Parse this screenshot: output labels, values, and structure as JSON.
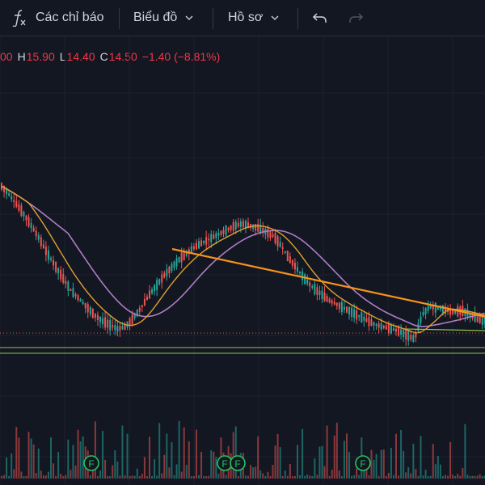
{
  "toolbar": {
    "indicators_label": "Các chỉ báo",
    "chart_menu_label": "Biểu đồ",
    "profile_menu_label": "Hồ sơ"
  },
  "legend": {
    "open_value": "00",
    "high_label": "H",
    "high_value": "15.90",
    "low_label": "L",
    "low_value": "14.40",
    "close_label": "C",
    "close_value": "14.50",
    "change": "−1.40 (−8.81%)"
  },
  "event_marker_label": "F",
  "colors": {
    "background": "#131722",
    "up": "#26a69a",
    "down": "#ef5350",
    "ma_fast": "#e0a030",
    "ma_slow": "#b07cc6",
    "trendline": "#f7931a",
    "support": "#8bc34a",
    "price_line": "#ef5350",
    "event_marker": "#22c55e"
  },
  "chart_data": {
    "type": "candlestick",
    "trendline_points": [
      [
        0.355,
        0.0
      ],
      [
        1.0,
        0.27
      ]
    ],
    "close_series": [
      0.17,
      0.21,
      0.26,
      0.31,
      0.37,
      0.43,
      0.5,
      0.56,
      0.62,
      0.68,
      0.72,
      0.76,
      0.8,
      0.83,
      0.85,
      0.87,
      0.86,
      0.82,
      0.77,
      0.71,
      0.66,
      0.61,
      0.57,
      0.53,
      0.5,
      0.47,
      0.45,
      0.43,
      0.41,
      0.39,
      0.37,
      0.36,
      0.37,
      0.38,
      0.4,
      0.42,
      0.47,
      0.53,
      0.58,
      0.63,
      0.67,
      0.7,
      0.73,
      0.75,
      0.77,
      0.79,
      0.81,
      0.83,
      0.85,
      0.86,
      0.87,
      0.88,
      0.9,
      0.92,
      0.8,
      0.76,
      0.77,
      0.78,
      0.79,
      0.78,
      0.8,
      0.82,
      0.83
    ]
  }
}
